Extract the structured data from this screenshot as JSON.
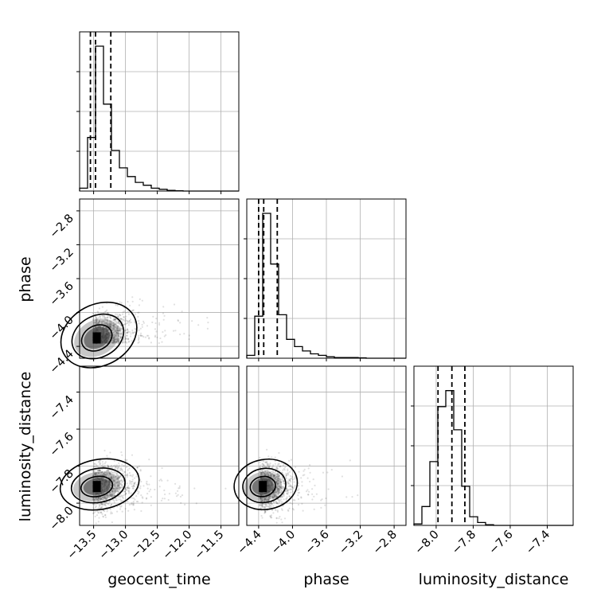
{
  "chart_data": {
    "type": "corner",
    "parameters": [
      "geocent_time",
      "phase",
      "luminosity_distance"
    ],
    "axis_labels": {
      "x": [
        "geocent_time",
        "phase",
        "luminosity_distance"
      ],
      "y": [
        "phase",
        "luminosity_distance"
      ]
    },
    "ranges": {
      "geocent_time": [
        -13.72,
        -11.22
      ],
      "phase": [
        -4.54,
        -2.66
      ],
      "luminosity_distance": [
        -8.12,
        -7.26
      ]
    },
    "ticks": {
      "geocent_time": [
        -13.5,
        -13.0,
        -12.5,
        -12.0,
        -11.5
      ],
      "phase": [
        -4.4,
        -4.0,
        -3.6,
        -3.2,
        -2.8
      ],
      "luminosity_distance": [
        -8.0,
        -7.8,
        -7.6,
        -7.4
      ]
    },
    "tick_labels": {
      "geocent_time": [
        "−13.5",
        "−13.0",
        "−12.5",
        "−12.0",
        "−11.5"
      ],
      "phase": [
        "−4.4",
        "−4.0",
        "−3.6",
        "−3.2",
        "−2.8"
      ],
      "luminosity_distance": [
        "−8.0",
        "−7.8",
        "−7.6",
        "−7.4"
      ]
    },
    "grid": true,
    "histograms": [
      {
        "parameter": "geocent_time",
        "bins": [
          -13.72,
          -13.595,
          -13.47,
          -13.345,
          -13.22,
          -13.095,
          -12.97,
          -12.845,
          -12.72,
          -12.595,
          -12.47,
          -12.345,
          -12.22,
          -12.095,
          -11.97,
          -11.845,
          -11.72,
          -11.595,
          -11.47,
          -11.345,
          -11.22
        ],
        "counts": [
          0.02,
          0.37,
          1.0,
          0.6,
          0.28,
          0.16,
          0.1,
          0.06,
          0.04,
          0.02,
          0.012,
          0.005,
          0.002,
          0,
          0,
          0,
          0,
          0,
          0,
          0
        ],
        "quantiles": [
          -13.55,
          -13.47,
          -13.23
        ]
      },
      {
        "parameter": "phase",
        "bins": [
          -4.54,
          -4.446,
          -4.352,
          -4.258,
          -4.164,
          -4.07,
          -3.976,
          -3.882,
          -3.788,
          -3.694,
          -3.6,
          -3.506,
          -3.412,
          -3.318,
          -3.224,
          -3.13,
          -3.036,
          -2.942,
          -2.848,
          -2.754,
          -2.66
        ],
        "counts": [
          0.02,
          0.29,
          1.0,
          0.65,
          0.3,
          0.13,
          0.08,
          0.05,
          0.03,
          0.02,
          0.01,
          0.005,
          0.005,
          0.005,
          0.003,
          0,
          0,
          0,
          0,
          0
        ],
        "quantiles": [
          -4.4,
          -4.34,
          -4.18
        ]
      },
      {
        "parameter": "luminosity_distance",
        "bins": [
          -8.12,
          -8.077,
          -8.034,
          -7.991,
          -7.948,
          -7.905,
          -7.862,
          -7.819,
          -7.776,
          -7.733,
          -7.69,
          -7.647,
          -7.604,
          -7.561,
          -7.518,
          -7.475,
          -7.432,
          -7.389,
          -7.346,
          -7.303,
          -7.26
        ],
        "counts": [
          0.01,
          0.13,
          0.44,
          0.82,
          0.93,
          0.66,
          0.27,
          0.06,
          0.02,
          0.005,
          0,
          0,
          0,
          0,
          0,
          0,
          0,
          0,
          0,
          0
        ],
        "quantiles": [
          -7.99,
          -7.915,
          -7.845
        ]
      }
    ],
    "scatter_panels": [
      {
        "x": "geocent_time",
        "y": "phase",
        "peak": [
          -13.45,
          -4.3
        ],
        "spread": [
          0.25,
          0.16
        ],
        "correlation": 0.6,
        "contour_levels": 3
      },
      {
        "x": "geocent_time",
        "y": "luminosity_distance",
        "peak": [
          -13.45,
          -7.91
        ],
        "spread": [
          0.25,
          0.06
        ],
        "correlation": 0.2,
        "contour_levels": 3
      },
      {
        "x": "phase",
        "y": "luminosity_distance",
        "peak": [
          -4.35,
          -7.91
        ],
        "spread": [
          0.15,
          0.06
        ],
        "correlation": 0.2,
        "contour_levels": 3
      }
    ]
  }
}
